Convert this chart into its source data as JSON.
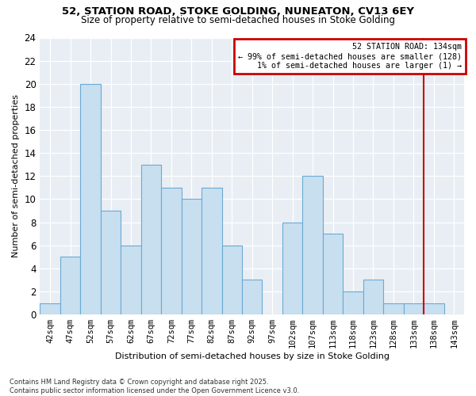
{
  "title_line1": "52, STATION ROAD, STOKE GOLDING, NUNEATON, CV13 6EY",
  "title_line2": "Size of property relative to semi-detached houses in Stoke Golding",
  "xlabel": "Distribution of semi-detached houses by size in Stoke Golding",
  "ylabel": "Number of semi-detached properties",
  "footer_line1": "Contains HM Land Registry data © Crown copyright and database right 2025.",
  "footer_line2": "Contains public sector information licensed under the Open Government Licence v3.0.",
  "categories": [
    "42sqm",
    "47sqm",
    "52sqm",
    "57sqm",
    "62sqm",
    "67sqm",
    "72sqm",
    "77sqm",
    "82sqm",
    "87sqm",
    "92sqm",
    "97sqm",
    "102sqm",
    "107sqm",
    "113sqm",
    "118sqm",
    "123sqm",
    "128sqm",
    "133sqm",
    "138sqm",
    "143sqm"
  ],
  "values": [
    1,
    5,
    20,
    9,
    6,
    13,
    11,
    10,
    11,
    6,
    3,
    0,
    8,
    12,
    7,
    2,
    3,
    1,
    1,
    1,
    0
  ],
  "bar_color": "#c8dff0",
  "bar_edge_color": "#6aaad4",
  "annotation_title": "52 STATION ROAD: 134sqm",
  "annotation_line2": "← 99% of semi-detached houses are smaller (128)",
  "annotation_line3": "1% of semi-detached houses are larger (1) →",
  "vline_color": "#cc0000",
  "annotation_box_color": "#cc0000",
  "ylim": [
    0,
    24
  ],
  "yticks": [
    0,
    2,
    4,
    6,
    8,
    10,
    12,
    14,
    16,
    18,
    20,
    22,
    24
  ],
  "background_color": "#ffffff",
  "plot_bg_color": "#e8eef4",
  "grid_color": "#ffffff"
}
